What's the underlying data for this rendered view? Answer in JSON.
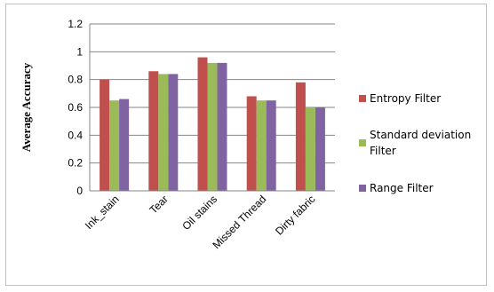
{
  "chart_data": {
    "type": "bar",
    "title": "",
    "xlabel": "",
    "ylabel": "Average Accuracy",
    "ylim": [
      0,
      1.2
    ],
    "yticks": [
      "0",
      "0.2",
      "0.4",
      "0.6",
      "0.8",
      "1",
      "1.2"
    ],
    "grid": true,
    "legend_position": "right",
    "categories": [
      "Ink_stain",
      "Tear",
      "Oil stains",
      "Missed Thread",
      "Dirty fabric"
    ],
    "series": [
      {
        "name": "Entropy Filter",
        "color": "#c0504d",
        "values": [
          0.8,
          0.86,
          0.96,
          0.68,
          0.78
        ]
      },
      {
        "name": "Standard deviation Filter",
        "legend_lines": [
          "Standard deviation",
          "Filter"
        ],
        "color": "#9bbb59",
        "values": [
          0.65,
          0.84,
          0.92,
          0.65,
          0.6
        ]
      },
      {
        "name": "Range Filter",
        "color": "#8064a2",
        "values": [
          0.66,
          0.84,
          0.92,
          0.65,
          0.6
        ]
      }
    ]
  }
}
